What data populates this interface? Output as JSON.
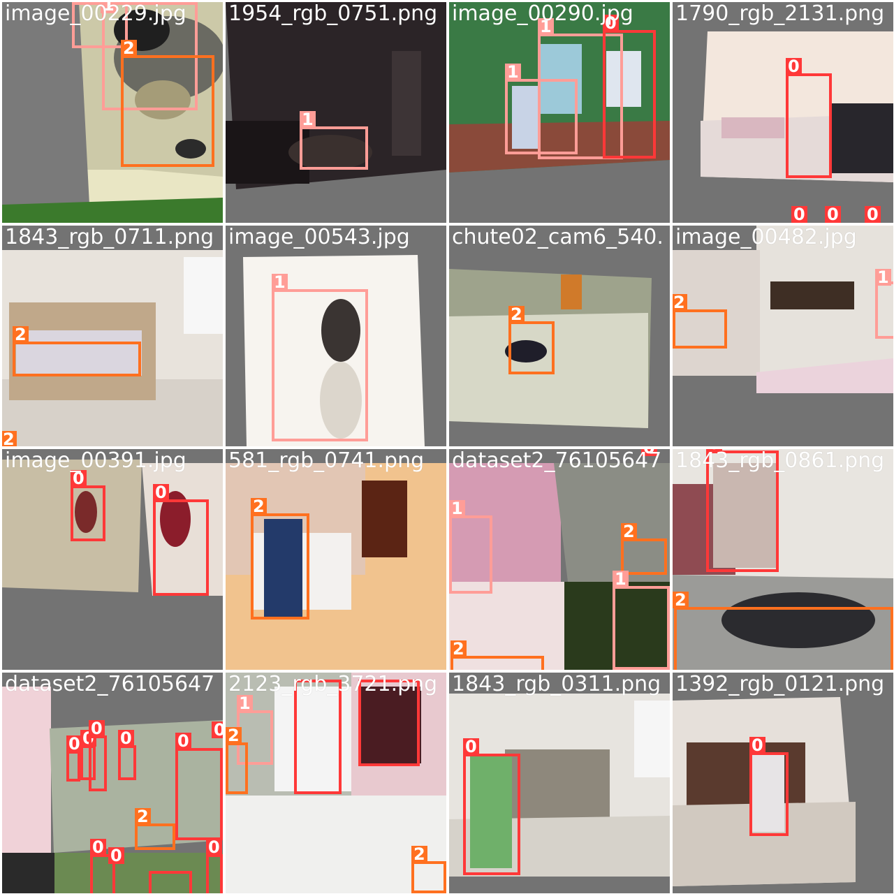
{
  "class_colors": {
    "0": "#ff3838",
    "1": "#ff9d97",
    "2": "#ff701f"
  },
  "tiles": [
    {
      "name": "image_00229.jpg",
      "labels": [
        "1",
        "2"
      ]
    },
    {
      "name": "1954_rgb_0751.png",
      "labels": [
        "1"
      ]
    },
    {
      "name": "image_00290.jpg",
      "labels": [
        "1",
        "0",
        "1"
      ]
    },
    {
      "name": "1790_rgb_2131.png",
      "labels": [
        "0",
        "0",
        "0",
        "0"
      ]
    },
    {
      "name": "1843_rgb_0711.png",
      "labels": [
        "2",
        "2"
      ]
    },
    {
      "name": "image_00543.jpg",
      "labels": [
        "1"
      ]
    },
    {
      "name": "chute02_cam6_540.",
      "labels": [
        "2"
      ]
    },
    {
      "name": "image_00482.jpg",
      "labels": [
        "2",
        "1"
      ]
    },
    {
      "name": "image_00391.jpg",
      "labels": [
        "0",
        "0"
      ]
    },
    {
      "name": "581_rgb_0741.png",
      "labels": [
        "2"
      ]
    },
    {
      "name": "dataset2_76105647",
      "labels": [
        "0",
        "1",
        "2",
        "1",
        "2"
      ]
    },
    {
      "name": "1843_rgb_0861.png",
      "labels": [
        "0",
        "2"
      ]
    },
    {
      "name": "dataset2_76105647",
      "labels": [
        "0",
        "0",
        "0",
        "0",
        "0",
        "0",
        "2",
        "0",
        "0",
        "0"
      ]
    },
    {
      "name": "2123_rgb_3721.png",
      "labels": [
        "0",
        "0",
        "1",
        "2",
        "2"
      ]
    },
    {
      "name": "1843_rgb_0311.png",
      "labels": [
        "0"
      ]
    },
    {
      "name": "1392_rgb_0121.png",
      "labels": [
        "0"
      ]
    }
  ]
}
